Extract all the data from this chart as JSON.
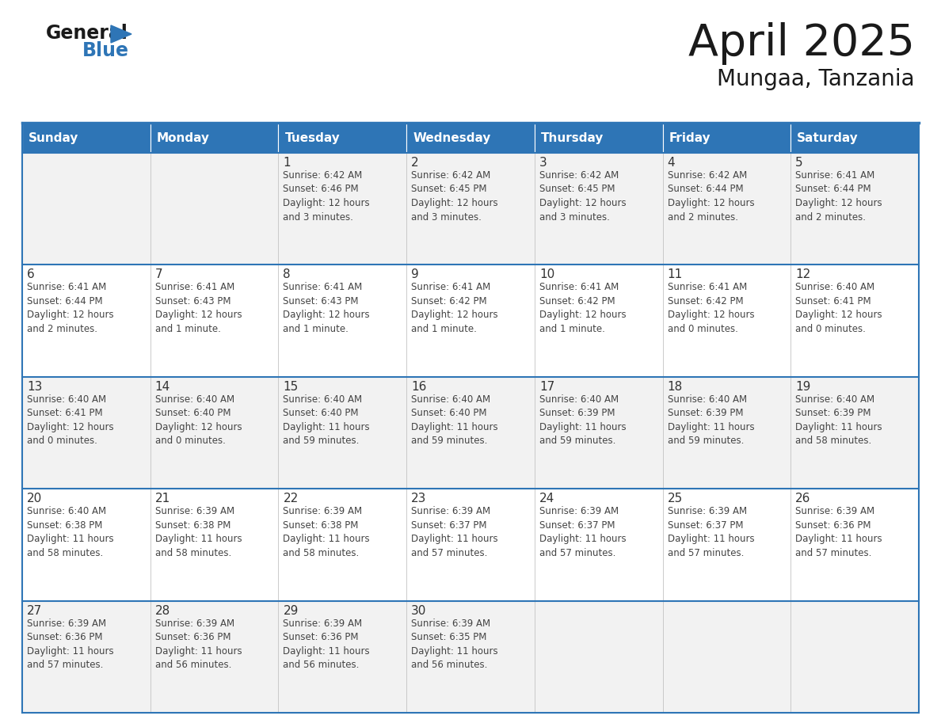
{
  "title": "April 2025",
  "subtitle": "Mungaa, Tanzania",
  "days_of_week": [
    "Sunday",
    "Monday",
    "Tuesday",
    "Wednesday",
    "Thursday",
    "Friday",
    "Saturday"
  ],
  "header_bg_color": "#2e75b6",
  "header_text_color": "#ffffff",
  "row_odd_bg": "#f2f2f2",
  "row_even_bg": "#ffffff",
  "border_color": "#2e75b6",
  "cell_border_color": "#c0c0c0",
  "text_color": "#333333",
  "title_color": "#1a1a1a",
  "logo_black": "#1a1a1a",
  "logo_blue": "#2e75b6",
  "weeks": [
    [
      {
        "day": 0,
        "data": ""
      },
      {
        "day": 0,
        "data": ""
      },
      {
        "day": 1,
        "data": "Sunrise: 6:42 AM\nSunset: 6:46 PM\nDaylight: 12 hours\nand 3 minutes."
      },
      {
        "day": 2,
        "data": "Sunrise: 6:42 AM\nSunset: 6:45 PM\nDaylight: 12 hours\nand 3 minutes."
      },
      {
        "day": 3,
        "data": "Sunrise: 6:42 AM\nSunset: 6:45 PM\nDaylight: 12 hours\nand 3 minutes."
      },
      {
        "day": 4,
        "data": "Sunrise: 6:42 AM\nSunset: 6:44 PM\nDaylight: 12 hours\nand 2 minutes."
      },
      {
        "day": 5,
        "data": "Sunrise: 6:41 AM\nSunset: 6:44 PM\nDaylight: 12 hours\nand 2 minutes."
      }
    ],
    [
      {
        "day": 6,
        "data": "Sunrise: 6:41 AM\nSunset: 6:44 PM\nDaylight: 12 hours\nand 2 minutes."
      },
      {
        "day": 7,
        "data": "Sunrise: 6:41 AM\nSunset: 6:43 PM\nDaylight: 12 hours\nand 1 minute."
      },
      {
        "day": 8,
        "data": "Sunrise: 6:41 AM\nSunset: 6:43 PM\nDaylight: 12 hours\nand 1 minute."
      },
      {
        "day": 9,
        "data": "Sunrise: 6:41 AM\nSunset: 6:42 PM\nDaylight: 12 hours\nand 1 minute."
      },
      {
        "day": 10,
        "data": "Sunrise: 6:41 AM\nSunset: 6:42 PM\nDaylight: 12 hours\nand 1 minute."
      },
      {
        "day": 11,
        "data": "Sunrise: 6:41 AM\nSunset: 6:42 PM\nDaylight: 12 hours\nand 0 minutes."
      },
      {
        "day": 12,
        "data": "Sunrise: 6:40 AM\nSunset: 6:41 PM\nDaylight: 12 hours\nand 0 minutes."
      }
    ],
    [
      {
        "day": 13,
        "data": "Sunrise: 6:40 AM\nSunset: 6:41 PM\nDaylight: 12 hours\nand 0 minutes."
      },
      {
        "day": 14,
        "data": "Sunrise: 6:40 AM\nSunset: 6:40 PM\nDaylight: 12 hours\nand 0 minutes."
      },
      {
        "day": 15,
        "data": "Sunrise: 6:40 AM\nSunset: 6:40 PM\nDaylight: 11 hours\nand 59 minutes."
      },
      {
        "day": 16,
        "data": "Sunrise: 6:40 AM\nSunset: 6:40 PM\nDaylight: 11 hours\nand 59 minutes."
      },
      {
        "day": 17,
        "data": "Sunrise: 6:40 AM\nSunset: 6:39 PM\nDaylight: 11 hours\nand 59 minutes."
      },
      {
        "day": 18,
        "data": "Sunrise: 6:40 AM\nSunset: 6:39 PM\nDaylight: 11 hours\nand 59 minutes."
      },
      {
        "day": 19,
        "data": "Sunrise: 6:40 AM\nSunset: 6:39 PM\nDaylight: 11 hours\nand 58 minutes."
      }
    ],
    [
      {
        "day": 20,
        "data": "Sunrise: 6:40 AM\nSunset: 6:38 PM\nDaylight: 11 hours\nand 58 minutes."
      },
      {
        "day": 21,
        "data": "Sunrise: 6:39 AM\nSunset: 6:38 PM\nDaylight: 11 hours\nand 58 minutes."
      },
      {
        "day": 22,
        "data": "Sunrise: 6:39 AM\nSunset: 6:38 PM\nDaylight: 11 hours\nand 58 minutes."
      },
      {
        "day": 23,
        "data": "Sunrise: 6:39 AM\nSunset: 6:37 PM\nDaylight: 11 hours\nand 57 minutes."
      },
      {
        "day": 24,
        "data": "Sunrise: 6:39 AM\nSunset: 6:37 PM\nDaylight: 11 hours\nand 57 minutes."
      },
      {
        "day": 25,
        "data": "Sunrise: 6:39 AM\nSunset: 6:37 PM\nDaylight: 11 hours\nand 57 minutes."
      },
      {
        "day": 26,
        "data": "Sunrise: 6:39 AM\nSunset: 6:36 PM\nDaylight: 11 hours\nand 57 minutes."
      }
    ],
    [
      {
        "day": 27,
        "data": "Sunrise: 6:39 AM\nSunset: 6:36 PM\nDaylight: 11 hours\nand 57 minutes."
      },
      {
        "day": 28,
        "data": "Sunrise: 6:39 AM\nSunset: 6:36 PM\nDaylight: 11 hours\nand 56 minutes."
      },
      {
        "day": 29,
        "data": "Sunrise: 6:39 AM\nSunset: 6:36 PM\nDaylight: 11 hours\nand 56 minutes."
      },
      {
        "day": 30,
        "data": "Sunrise: 6:39 AM\nSunset: 6:35 PM\nDaylight: 11 hours\nand 56 minutes."
      },
      {
        "day": 0,
        "data": ""
      },
      {
        "day": 0,
        "data": ""
      },
      {
        "day": 0,
        "data": ""
      }
    ]
  ]
}
